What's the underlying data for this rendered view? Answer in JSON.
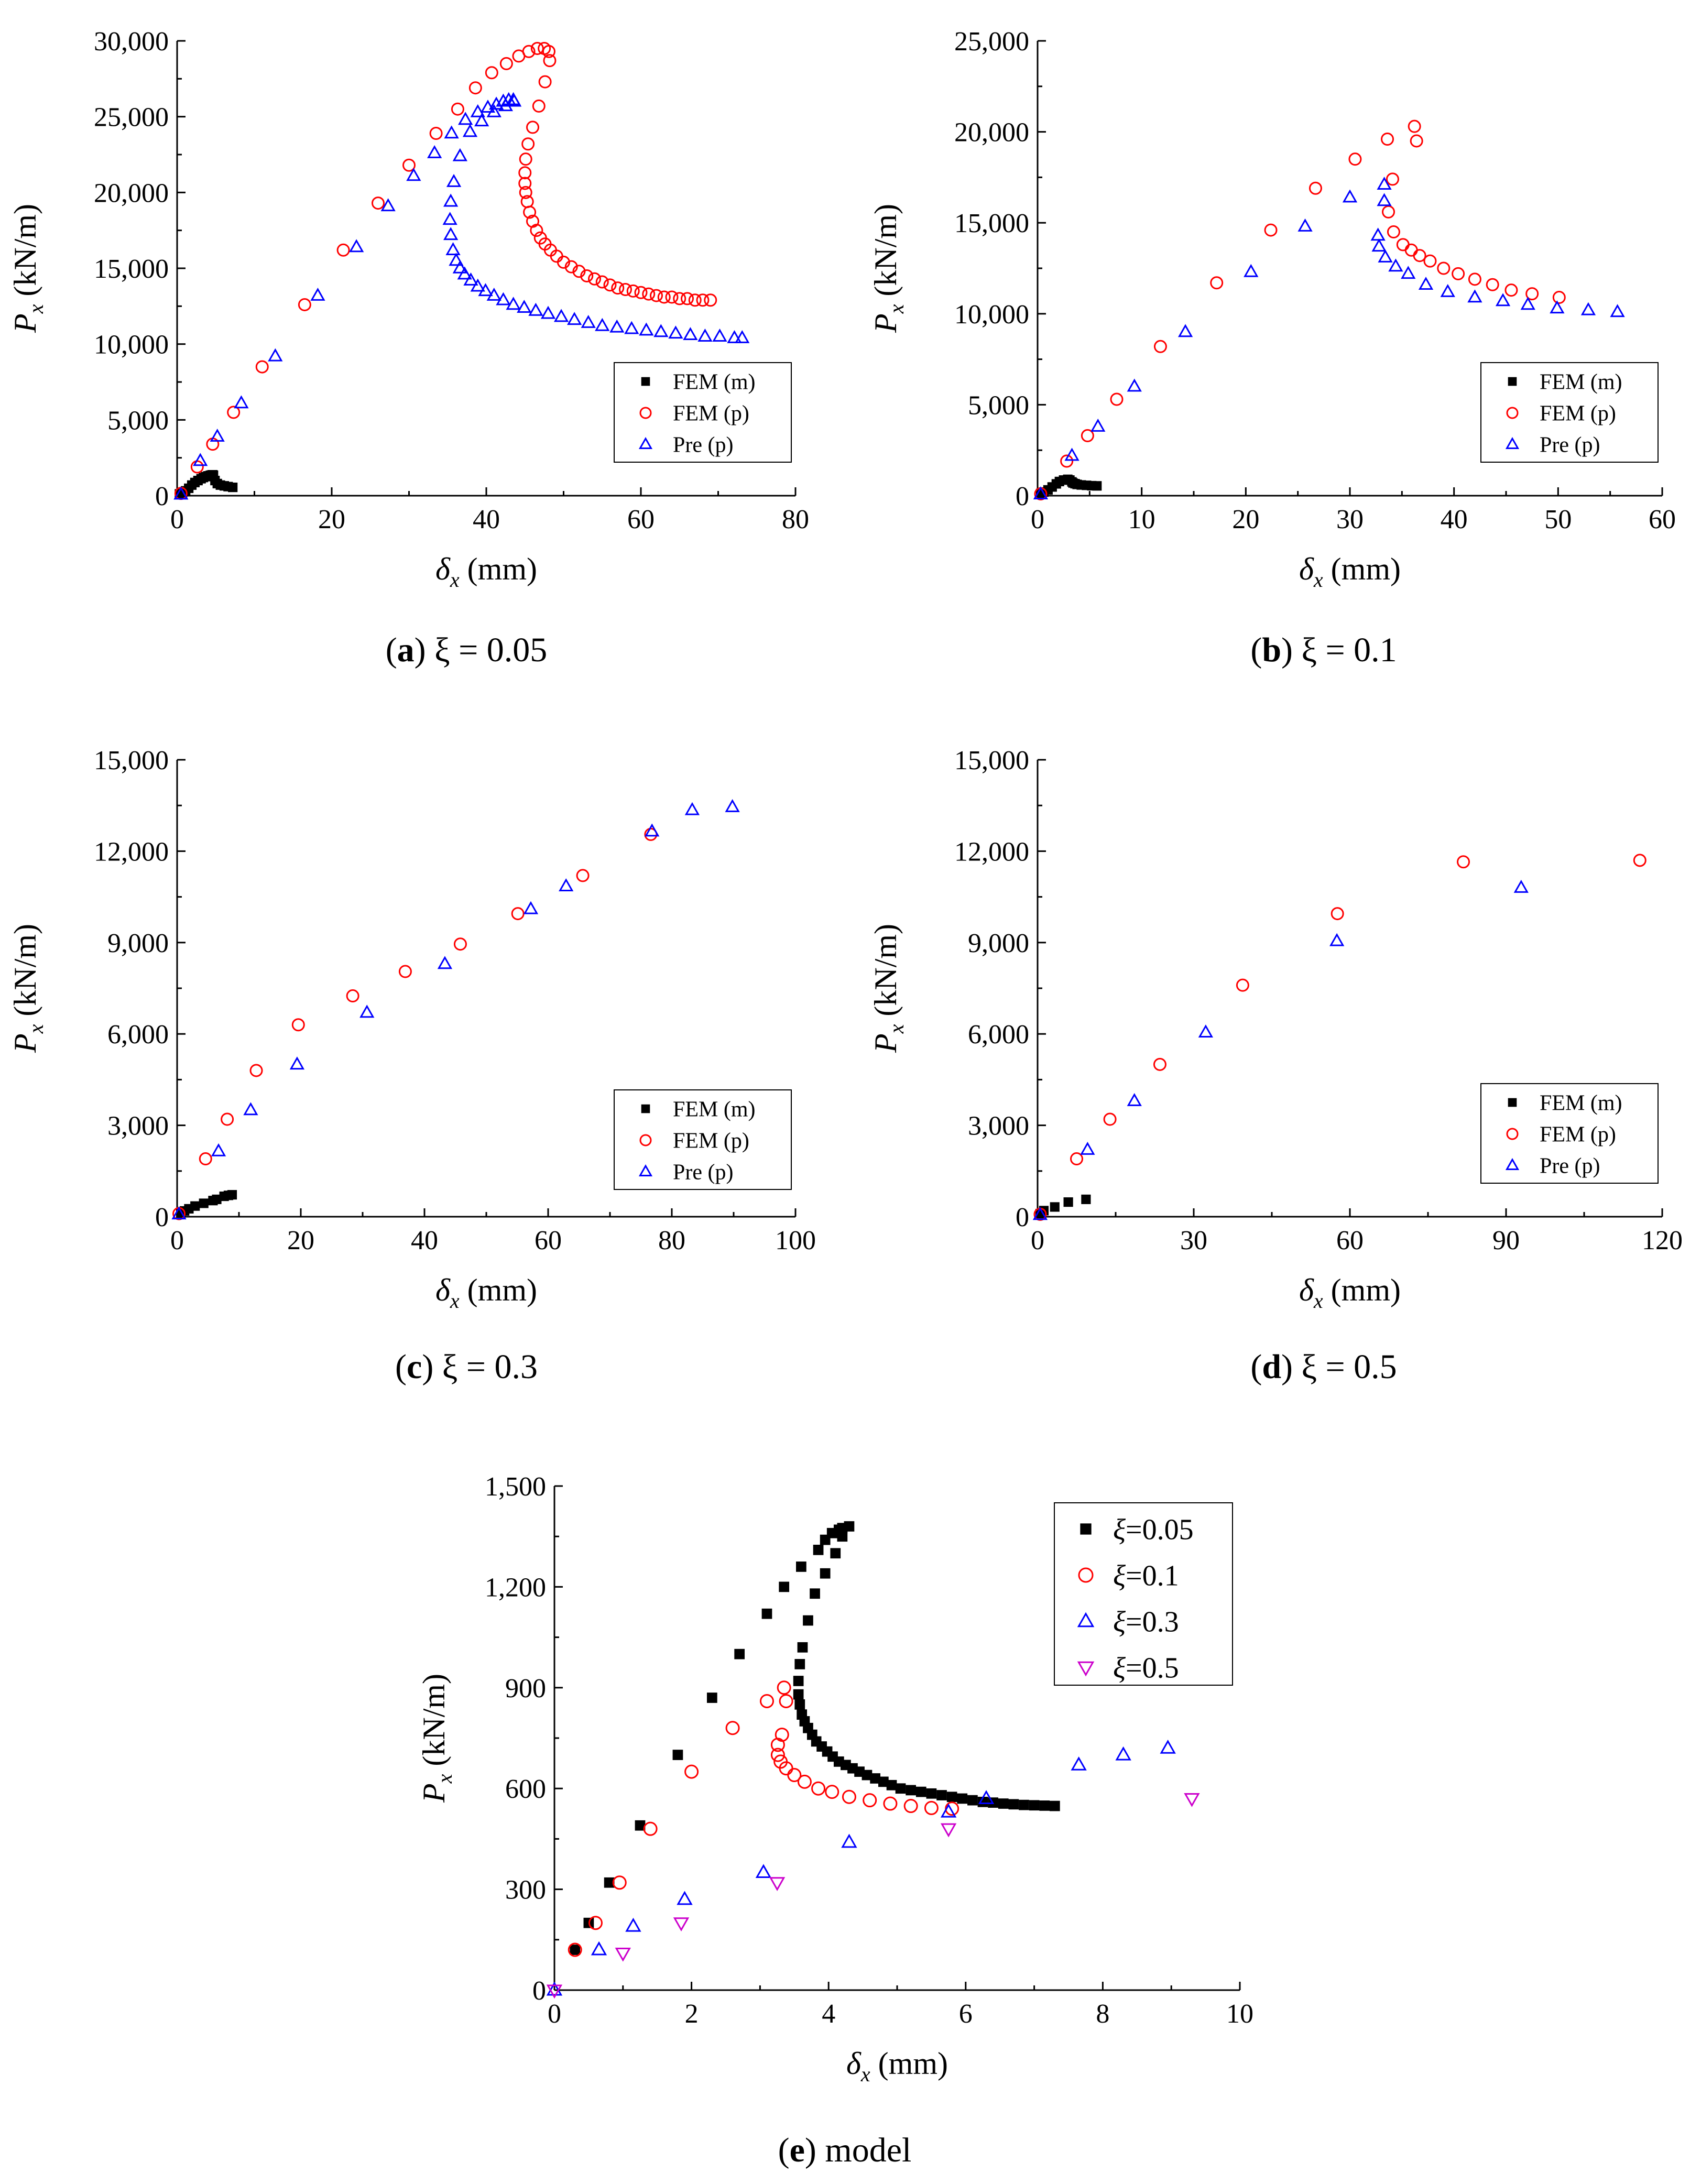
{
  "colors": {
    "fem_m": "#000000",
    "fem_p": "#ff0000",
    "pre_p": "#0000ff",
    "xi_05": "#cc00cc"
  },
  "chart_data": [
    {
      "type": "scatter",
      "panel": "a",
      "caption": {
        "letter": "a",
        "text": " ξ = 0.05"
      },
      "xlabel": {
        "sym": "δ",
        "sub": "x",
        "unit": " (mm)"
      },
      "ylabel": {
        "sym": "P",
        "sub": "x",
        "unit": " (kN/m)"
      },
      "xlim": [
        0,
        80
      ],
      "ylim": [
        0,
        30000
      ],
      "xticks": [
        0,
        20,
        40,
        60,
        80
      ],
      "xtick_labels": [
        "0",
        "20",
        "40",
        "60",
        "80"
      ],
      "yticks": [
        0,
        5000,
        10000,
        15000,
        20000,
        25000,
        30000
      ],
      "ytick_labels": [
        "0",
        "5,000",
        "10,000",
        "15,000",
        "20,000",
        "25,000",
        "30,000"
      ],
      "grid": false,
      "legend": "bottom-right",
      "series": [
        {
          "name": "FEM (m)",
          "marker": "square",
          "x": [
            0.3,
            0.7,
            1.1,
            1.5,
            1.9,
            2.3,
            2.7,
            3.1,
            3.4,
            3.7,
            4.0,
            4.3,
            4.5,
            4.6,
            4.7,
            4.9,
            5.2,
            5.6,
            6.1,
            6.6,
            7.2
          ],
          "y": [
            120,
            200,
            320,
            490,
            700,
            870,
            1000,
            1120,
            1200,
            1260,
            1310,
            1350,
            1370,
            1380,
            1350,
            1000,
            800,
            700,
            650,
            600,
            550
          ]
        },
        {
          "name": "FEM (p)",
          "marker": "circle",
          "x": [
            0.5,
            2.6,
            4.6,
            7.3,
            11.0,
            16.5,
            21.5,
            26.0,
            30.0,
            33.5,
            36.3,
            38.6,
            40.7,
            42.6,
            44.2,
            45.5,
            46.6,
            47.5,
            48.1,
            48.2,
            47.6,
            46.8,
            46.0,
            45.4,
            45.1,
            45.0,
            45.0,
            45.1,
            45.3,
            45.6,
            46.0,
            46.5,
            47.0,
            47.6,
            48.3,
            49.1,
            50.0,
            51.0,
            52.0,
            53.0,
            54.0,
            55.0,
            56.0,
            57.0,
            58.0,
            59.0,
            60.0,
            61.0,
            62.0,
            63.0,
            64.0,
            65.0,
            66.0,
            67.0,
            68.0,
            69.0
          ],
          "y": [
            150,
            1900,
            3400,
            5500,
            8500,
            12600,
            16200,
            19300,
            21800,
            23900,
            25500,
            26900,
            27900,
            28500,
            29000,
            29300,
            29500,
            29500,
            29300,
            28700,
            27300,
            25700,
            24300,
            23200,
            22200,
            21300,
            20600,
            20000,
            19400,
            18700,
            18100,
            17500,
            17000,
            16600,
            16200,
            15800,
            15400,
            15100,
            14800,
            14500,
            14300,
            14100,
            13900,
            13700,
            13600,
            13500,
            13400,
            13300,
            13200,
            13100,
            13100,
            13000,
            13000,
            12900,
            12900,
            12900
          ]
        },
        {
          "name": "Pre (p)",
          "marker": "triangle-up",
          "x": [
            0.5,
            3.0,
            5.2,
            8.3,
            12.7,
            18.2,
            23.2,
            27.3,
            30.6,
            33.3,
            35.5,
            37.3,
            38.9,
            40.2,
            41.3,
            42.2,
            42.9,
            43.5,
            43.6,
            42.5,
            41.0,
            39.4,
            37.9,
            36.6,
            35.8,
            35.4,
            35.3,
            35.4,
            35.7,
            36.1,
            36.6,
            37.2,
            38.0,
            38.9,
            39.9,
            41.0,
            42.2,
            43.5,
            44.9,
            46.4,
            48.0,
            49.7,
            51.4,
            53.2,
            55.0,
            56.9,
            58.8,
            60.7,
            62.6,
            64.5,
            66.4,
            68.3,
            70.2,
            72.1,
            73.1
          ],
          "y": [
            80,
            2300,
            3900,
            6100,
            9200,
            13200,
            16400,
            19100,
            21100,
            22600,
            23900,
            24800,
            25300,
            25600,
            25800,
            26000,
            26100,
            26100,
            26000,
            25700,
            25300,
            24700,
            24000,
            22400,
            20700,
            19400,
            18200,
            17200,
            16200,
            15500,
            15000,
            14600,
            14200,
            13800,
            13500,
            13200,
            12900,
            12600,
            12400,
            12200,
            12000,
            11800,
            11600,
            11400,
            11200,
            11100,
            11000,
            10900,
            10800,
            10700,
            10600,
            10500,
            10500,
            10400,
            10400
          ]
        }
      ]
    },
    {
      "type": "scatter",
      "panel": "b",
      "caption": {
        "letter": "b",
        "text": " ξ = 0.1"
      },
      "xlabel": {
        "sym": "δ",
        "sub": "x",
        "unit": " (mm)"
      },
      "ylabel": {
        "sym": "P",
        "sub": "x",
        "unit": " (kN/m)"
      },
      "xlim": [
        0,
        60
      ],
      "ylim": [
        0,
        25000
      ],
      "xticks": [
        0,
        10,
        20,
        30,
        40,
        50,
        60
      ],
      "xtick_labels": [
        "0",
        "10",
        "20",
        "30",
        "40",
        "50",
        "60"
      ],
      "yticks": [
        0,
        5000,
        10000,
        15000,
        20000,
        25000
      ],
      "ytick_labels": [
        "0",
        "5,000",
        "10,000",
        "15,000",
        "20,000",
        "25,000"
      ],
      "grid": false,
      "legend": "bottom-right",
      "series": [
        {
          "name": "FEM (m)",
          "marker": "square",
          "x": [
            0.3,
            0.6,
            1.0,
            1.4,
            1.8,
            2.1,
            2.5,
            2.9,
            3.1,
            3.3,
            3.4,
            3.6,
            3.8,
            4.2,
            4.7,
            5.2,
            5.7
          ],
          "y": [
            120,
            200,
            320,
            480,
            650,
            780,
            860,
            900,
            860,
            760,
            700,
            660,
            620,
            590,
            570,
            550,
            540
          ]
        },
        {
          "name": "FEM (p)",
          "marker": "circle",
          "x": [
            0.3,
            2.8,
            4.8,
            7.6,
            11.8,
            17.2,
            22.4,
            26.7,
            30.5,
            33.6,
            36.2,
            36.4,
            34.1,
            33.7,
            34.2,
            35.1,
            35.9,
            36.7,
            37.7,
            39.0,
            40.4,
            42.0,
            43.7,
            45.5,
            47.5,
            50.1
          ],
          "y": [
            100,
            1900,
            3300,
            5300,
            8200,
            11700,
            14600,
            16900,
            18500,
            19600,
            20300,
            19500,
            17400,
            15600,
            14500,
            13800,
            13500,
            13200,
            12900,
            12500,
            12200,
            11900,
            11600,
            11300,
            11100,
            10900
          ]
        },
        {
          "name": "Pre (p)",
          "marker": "triangle-up",
          "x": [
            0.3,
            3.3,
            5.8,
            9.3,
            14.2,
            20.5,
            25.7,
            30.0,
            33.3,
            33.3,
            32.7,
            32.8,
            33.4,
            34.4,
            35.6,
            37.3,
            39.4,
            42.0,
            44.7,
            47.1,
            49.9,
            52.9,
            55.7
          ],
          "y": [
            80,
            2200,
            3800,
            6000,
            9000,
            12300,
            14800,
            16400,
            17100,
            16200,
            14300,
            13700,
            13100,
            12600,
            12200,
            11600,
            11200,
            10900,
            10700,
            10500,
            10300,
            10200,
            10100
          ]
        }
      ]
    },
    {
      "type": "scatter",
      "panel": "c",
      "caption": {
        "letter": "c",
        "text": " ξ = 0.3"
      },
      "xlabel": {
        "sym": "δ",
        "sub": "x",
        "unit": " (mm)"
      },
      "ylabel": {
        "sym": "P",
        "sub": "x",
        "unit": " (kN/m)"
      },
      "xlim": [
        0,
        100
      ],
      "ylim": [
        0,
        15000
      ],
      "xticks": [
        0,
        20,
        40,
        60,
        80,
        100
      ],
      "xtick_labels": [
        "0",
        "20",
        "40",
        "60",
        "80",
        "100"
      ],
      "yticks": [
        0,
        3000,
        6000,
        9000,
        12000,
        15000
      ],
      "ytick_labels": [
        "0",
        "3,000",
        "6,000",
        "9,000",
        "12,000",
        "15,000"
      ],
      "grid": false,
      "legend": "bottom-right",
      "series": [
        {
          "name": "FEM (m)",
          "marker": "square",
          "x": [
            0.6,
            1.2,
            1.9,
            2.9,
            4.3,
            5.8,
            6.4,
            7.6,
            8.3,
            8.9
          ],
          "y": [
            120,
            190,
            260,
            350,
            440,
            530,
            570,
            670,
            700,
            720
          ]
        },
        {
          "name": "FEM (p)",
          "marker": "circle",
          "x": [
            0.3,
            4.6,
            8.1,
            12.8,
            19.6,
            28.4,
            36.9,
            45.8,
            55.1,
            65.6,
            76.6
          ],
          "y": [
            100,
            1900,
            3200,
            4800,
            6300,
            7250,
            8050,
            8950,
            9950,
            11200,
            12550
          ]
        },
        {
          "name": "Pre (p)",
          "marker": "triangle-up",
          "x": [
            0.3,
            6.7,
            11.9,
            19.4,
            30.7,
            43.3,
            57.2,
            62.9,
            76.8,
            83.3,
            89.8
          ],
          "y": [
            80,
            2150,
            3500,
            5000,
            6700,
            8300,
            10100,
            10850,
            12650,
            13350,
            13450
          ]
        }
      ]
    },
    {
      "type": "scatter",
      "panel": "d",
      "caption": {
        "letter": "d",
        "text": " ξ = 0.5"
      },
      "xlabel": {
        "sym": "δ",
        "sub": "x",
        "unit": " (mm)"
      },
      "ylabel": {
        "sym": "P",
        "sub": "x",
        "unit": " (kN/m)"
      },
      "xlim": [
        0,
        120
      ],
      "ylim": [
        0,
        15000
      ],
      "xticks": [
        0,
        30,
        60,
        90,
        120
      ],
      "xtick_labels": [
        "0",
        "30",
        "60",
        "90",
        "120"
      ],
      "yticks": [
        0,
        3000,
        6000,
        9000,
        12000,
        15000
      ],
      "ytick_labels": [
        "0",
        "3,000",
        "6,000",
        "9,000",
        "12,000",
        "15,000"
      ],
      "grid": false,
      "legend": "bottom-right",
      "series": [
        {
          "name": "FEM (m)",
          "marker": "square",
          "x": [
            0.5,
            1.2,
            3.3,
            5.9,
            9.3
          ],
          "y": [
            100,
            200,
            320,
            480,
            570
          ]
        },
        {
          "name": "FEM (p)",
          "marker": "circle",
          "x": [
            0.5,
            7.5,
            13.9,
            23.5,
            39.4,
            57.6,
            81.8,
            115.7
          ],
          "y": [
            80,
            1900,
            3200,
            5000,
            7600,
            9950,
            11650,
            11700
          ]
        },
        {
          "name": "Pre (p)",
          "marker": "triangle-up",
          "x": [
            0.5,
            9.6,
            18.6,
            32.3,
            57.5,
            92.9
          ],
          "y": [
            60,
            2200,
            3800,
            6050,
            9050,
            10800
          ]
        }
      ]
    },
    {
      "type": "scatter",
      "panel": "e",
      "caption": {
        "letter": "e",
        "text": " model"
      },
      "xlabel": {
        "sym": "δ",
        "sub": "x",
        "unit": " (mm)"
      },
      "ylabel": {
        "sym": "P",
        "sub": "x",
        "unit": " (kN/m)"
      },
      "xlim": [
        0,
        10
      ],
      "ylim": [
        0,
        1500
      ],
      "xticks": [
        0,
        2,
        4,
        6,
        8,
        10
      ],
      "xtick_labels": [
        "0",
        "2",
        "4",
        "6",
        "8",
        "10"
      ],
      "yticks": [
        0,
        300,
        600,
        900,
        1200,
        1500
      ],
      "ytick_labels": [
        "0",
        "300",
        "600",
        "900",
        "1,200",
        "1,500"
      ],
      "grid": false,
      "legend": "top-right",
      "series": [
        {
          "name": "=0.05",
          "legend_sym": "ξ",
          "marker": "square",
          "x": [
            0.3,
            0.5,
            0.8,
            1.25,
            1.8,
            2.3,
            2.7,
            3.1,
            3.35,
            3.6,
            3.85,
            3.95,
            4.05,
            4.15,
            4.2,
            4.3,
            4.2,
            4.1,
            3.95,
            3.8,
            3.7,
            3.62,
            3.58,
            3.56,
            3.56,
            3.58,
            3.61,
            3.65,
            3.7,
            3.76,
            3.82,
            3.9,
            3.98,
            4.06,
            4.15,
            4.25,
            4.35,
            4.45,
            4.56,
            4.68,
            4.8,
            4.92,
            5.05,
            5.2,
            5.35,
            5.5,
            5.65,
            5.8,
            5.95,
            6.1,
            6.25,
            6.4,
            6.55,
            6.7,
            6.85,
            7.0,
            7.15,
            7.3
          ],
          "y": [
            120,
            200,
            320,
            490,
            700,
            870,
            1000,
            1120,
            1200,
            1260,
            1310,
            1340,
            1360,
            1370,
            1375,
            1380,
            1350,
            1300,
            1240,
            1180,
            1100,
            1020,
            970,
            920,
            880,
            850,
            820,
            800,
            780,
            760,
            740,
            725,
            710,
            695,
            680,
            670,
            660,
            650,
            640,
            630,
            620,
            610,
            600,
            595,
            590,
            585,
            580,
            575,
            570,
            565,
            560,
            558,
            555,
            553,
            551,
            550,
            549,
            548
          ]
        },
        {
          "name": "=0.1",
          "legend_sym": "ξ",
          "marker": "circle",
          "x": [
            0.3,
            0.6,
            0.95,
            1.4,
            2.0,
            2.6,
            3.1,
            3.35,
            3.38,
            3.32,
            3.26,
            3.26,
            3.3,
            3.38,
            3.5,
            3.65,
            3.85,
            4.05,
            4.3,
            4.6,
            4.9,
            5.2,
            5.5,
            5.8
          ],
          "y": [
            120,
            200,
            320,
            480,
            650,
            780,
            860,
            900,
            860,
            760,
            730,
            700,
            680,
            660,
            640,
            620,
            600,
            590,
            575,
            565,
            555,
            548,
            542,
            540
          ]
        },
        {
          "name": "=0.3",
          "legend_sym": "ξ",
          "marker": "triangle-up",
          "x": [
            0.0,
            0.65,
            1.15,
            1.9,
            3.05,
            4.3,
            5.75,
            6.3,
            7.65,
            8.3,
            8.95
          ],
          "y": [
            0,
            120,
            190,
            270,
            350,
            440,
            530,
            570,
            670,
            700,
            720
          ]
        },
        {
          "name": "=0.5",
          "legend_sym": "ξ",
          "marker": "triangle-down",
          "x": [
            0.0,
            1.0,
            1.85,
            3.25,
            5.75,
            9.3
          ],
          "y": [
            0,
            110,
            200,
            320,
            480,
            570
          ]
        }
      ]
    }
  ]
}
